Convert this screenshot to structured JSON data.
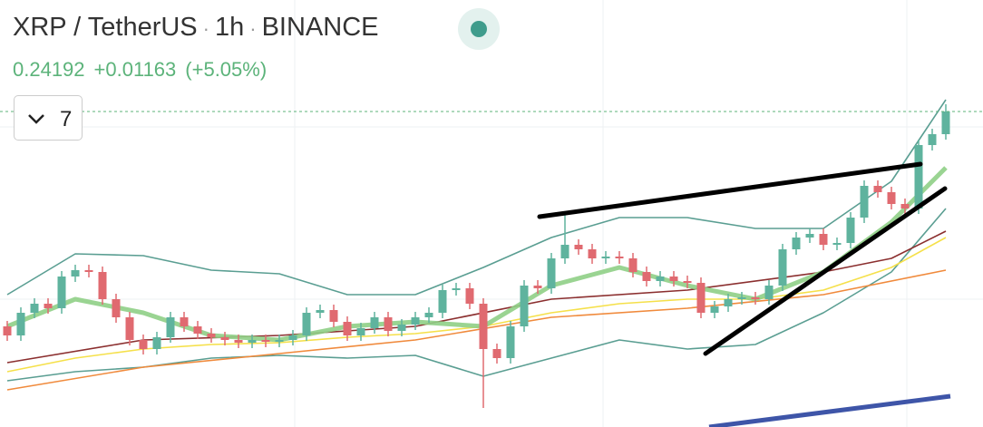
{
  "header": {
    "symbol": "XRP / TetherUS",
    "separator": "·",
    "interval": "1h",
    "exchange": "BINANCE",
    "last_price": "0.24192",
    "change": "+0.01163",
    "change_percent": "(+5.05%)",
    "indicators_toggle": "7"
  },
  "chart_data": {
    "type": "candlestick",
    "ylim": [
      0.22104,
      0.2493
    ],
    "up_color": "#5fb39e",
    "down_color": "#e06a70",
    "price_line": true,
    "open": [
      0.2277,
      0.2271,
      0.2286,
      0.2292,
      0.2289,
      0.231,
      0.23142,
      0.2313,
      0.2295,
      0.2283,
      0.2268,
      0.2262,
      0.22698,
      0.2283,
      0.2277,
      0.22722,
      0.22698,
      0.2268,
      0.22662,
      0.2268,
      0.22668,
      0.2268,
      0.2271,
      0.2286,
      0.22878,
      0.228,
      0.2271,
      0.22758,
      0.2283,
      0.2274,
      0.22782,
      0.2283,
      0.2286,
      0.2301,
      0.23022,
      0.2292,
      0.2262,
      0.2256,
      0.2277,
      0.2304,
      0.23022,
      0.2322,
      0.2331,
      0.2328,
      0.2322,
      0.23232,
      0.2322,
      0.2313,
      0.2307,
      0.231,
      0.2307,
      0.23058,
      0.2286,
      0.22902,
      0.2295,
      0.22962,
      0.2295,
      0.2304,
      0.2328,
      0.23358,
      0.23382,
      0.2331,
      0.23322,
      0.2349,
      0.237,
      0.23658,
      0.2358,
      0.2355,
      0.2397,
      0.24042
    ],
    "high": [
      0.22806,
      0.22896,
      0.22956,
      0.22956,
      0.23136,
      0.23178,
      0.23178,
      0.23166,
      0.22986,
      0.22866,
      0.22716,
      0.22734,
      0.22866,
      0.22866,
      0.22806,
      0.22758,
      0.22734,
      0.22716,
      0.22716,
      0.22716,
      0.22716,
      0.22746,
      0.22896,
      0.22914,
      0.22914,
      0.22836,
      0.22794,
      0.22866,
      0.22866,
      0.22818,
      0.22866,
      0.22896,
      0.23046,
      0.23058,
      0.23058,
      0.22956,
      0.22656,
      0.22806,
      0.23076,
      0.23076,
      0.23256,
      0.2352,
      0.23346,
      0.23316,
      0.23268,
      0.23268,
      0.23256,
      0.23166,
      0.23136,
      0.23136,
      0.23106,
      0.23094,
      0.22938,
      0.22986,
      0.22998,
      0.22998,
      0.23076,
      0.23316,
      0.23394,
      0.23418,
      0.23418,
      0.23358,
      0.23526,
      0.23736,
      0.23736,
      0.23694,
      0.23616,
      0.24006,
      0.24078,
      0.2424
    ],
    "low": [
      0.22674,
      0.22674,
      0.22824,
      0.22854,
      0.22854,
      0.23064,
      0.23094,
      0.22914,
      0.22794,
      0.22644,
      0.22584,
      0.22584,
      0.22662,
      0.22734,
      0.22686,
      0.22662,
      0.22644,
      0.22626,
      0.22626,
      0.22632,
      0.22632,
      0.22644,
      0.22674,
      0.22824,
      0.22764,
      0.22674,
      0.22674,
      0.22722,
      0.22704,
      0.22704,
      0.22746,
      0.22794,
      0.22824,
      0.22974,
      0.22884,
      0.2223,
      0.22524,
      0.22524,
      0.22734,
      0.22986,
      0.22986,
      0.23184,
      0.23244,
      0.23184,
      0.23184,
      0.23184,
      0.23094,
      0.23034,
      0.23034,
      0.23034,
      0.23022,
      0.22824,
      0.22824,
      0.22866,
      0.22914,
      0.22914,
      0.22914,
      0.23004,
      0.23244,
      0.23322,
      0.23274,
      0.23274,
      0.23286,
      0.23454,
      0.23622,
      0.23544,
      0.23514,
      0.23514,
      0.23934,
      0.24006
    ],
    "close": [
      0.2271,
      0.2286,
      0.2292,
      0.2289,
      0.231,
      0.23142,
      0.2313,
      0.2295,
      0.2283,
      0.2268,
      0.2262,
      0.22698,
      0.2283,
      0.2277,
      0.22722,
      0.22698,
      0.2268,
      0.22662,
      0.2268,
      0.22668,
      0.2268,
      0.2271,
      0.2286,
      0.22878,
      0.228,
      0.2271,
      0.22758,
      0.2283,
      0.2274,
      0.22782,
      0.2283,
      0.2286,
      0.2301,
      0.23022,
      0.2292,
      0.2262,
      0.2256,
      0.2277,
      0.2304,
      0.23022,
      0.2322,
      0.2331,
      0.2328,
      0.2322,
      0.23232,
      0.2322,
      0.2313,
      0.2307,
      0.231,
      0.2307,
      0.23058,
      0.2286,
      0.22902,
      0.2295,
      0.22962,
      0.2295,
      0.2304,
      0.2328,
      0.23358,
      0.23382,
      0.2331,
      0.23322,
      0.2349,
      0.237,
      0.23658,
      0.2358,
      0.2355,
      0.2397,
      0.24042,
      0.24192
    ],
    "indicators": [
      {
        "color": "#5a9e92",
        "x": [
          0,
          5,
          10,
          15,
          20,
          25,
          30,
          35,
          40,
          45,
          50,
          55,
          60,
          65,
          69
        ],
        "values": [
          0.2298,
          0.2325,
          0.23238,
          0.23142,
          0.23118,
          0.2298,
          0.2298,
          0.2316,
          0.23358,
          0.2349,
          0.2349,
          0.23418,
          0.23418,
          0.2373,
          0.2427
        ]
      },
      {
        "color": "#5a9e92",
        "x": [
          0,
          5,
          10,
          15,
          20,
          25,
          30,
          35,
          40,
          45,
          50,
          55,
          60,
          65,
          69
        ],
        "values": [
          0.2241,
          0.2247,
          0.225,
          0.2256,
          0.22578,
          0.2256,
          0.22578,
          0.2244,
          0.2256,
          0.2268,
          0.2262,
          0.2265,
          0.2286,
          0.2313,
          0.2355
        ]
      },
      {
        "color": "#f5e04a",
        "x": [
          0,
          5,
          10,
          15,
          20,
          25,
          30,
          35,
          40,
          45,
          50,
          55,
          60,
          65,
          69
        ],
        "values": [
          0.2247,
          0.2256,
          0.2262,
          0.2265,
          0.22662,
          0.22698,
          0.22722,
          0.2277,
          0.2286,
          0.2292,
          0.2295,
          0.2295,
          0.2301,
          0.2316,
          0.23358
        ]
      },
      {
        "color": "#f08a3c",
        "x": [
          0,
          10,
          20,
          30,
          40,
          50,
          60,
          69
        ],
        "values": [
          0.2235,
          0.225,
          0.2259,
          0.2268,
          0.2283,
          0.2289,
          0.2298,
          0.23142
        ]
      },
      {
        "color": "#8b2f2f",
        "x": [
          0,
          10,
          20,
          30,
          40,
          50,
          60,
          65,
          69
        ],
        "values": [
          0.2253,
          0.2268,
          0.2271,
          0.2277,
          0.2295,
          0.2301,
          0.2313,
          0.2322,
          0.234
        ]
      },
      {
        "color": "#8fcf86",
        "x": [
          0,
          5,
          10,
          15,
          20,
          25,
          30,
          35,
          40,
          45,
          50,
          55,
          60,
          65,
          69
        ],
        "values": [
          0.2277,
          0.2295,
          0.2286,
          0.2271,
          0.2268,
          0.2277,
          0.228,
          0.2277,
          0.2304,
          0.2316,
          0.2304,
          0.2295,
          0.2313,
          0.2346,
          0.2382
        ]
      }
    ]
  }
}
